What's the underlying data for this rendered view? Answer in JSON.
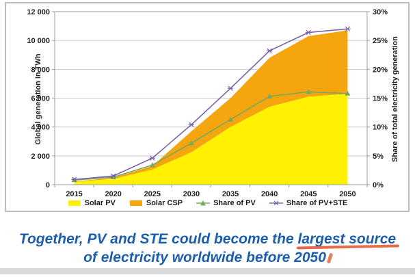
{
  "chart_data": {
    "type": "area",
    "title": "",
    "x": [
      "2015",
      "2020",
      "2025",
      "2030",
      "2035",
      "2040",
      "2045",
      "2050"
    ],
    "left_axis": {
      "label": "Global generation in TWh",
      "range": [
        0,
        12000
      ],
      "ticks": [
        "0",
        "2 000",
        "4 000",
        "6 000",
        "8 000",
        "10 000",
        "12 000"
      ]
    },
    "right_axis": {
      "label": "Share of total electricity generation",
      "range": [
        0,
        30
      ],
      "ticks": [
        "0%",
        "5%",
        "10%",
        "15%",
        "20%",
        "25%",
        "30%"
      ]
    },
    "grid": true,
    "legend_position": "bottom",
    "series": [
      {
        "name": "Solar PV",
        "kind": "area-stacked",
        "axis": "left",
        "unit": "TWh",
        "color": "#fff101",
        "values": [
          200,
          400,
          1050,
          2250,
          4000,
          5400,
          6100,
          6300
        ]
      },
      {
        "name": "Solar CSP",
        "kind": "area-stacked",
        "axis": "left",
        "unit": "TWh",
        "color": "#f5a50d",
        "values": [
          30,
          80,
          250,
          1450,
          2000,
          3400,
          4200,
          4400
        ]
      },
      {
        "name": "Share of PV",
        "kind": "line",
        "axis": "right",
        "unit": "%",
        "color": "#77a95f",
        "marker": "triangle",
        "values": [
          0.8,
          1.3,
          3.4,
          7.2,
          11.3,
          15.3,
          16.1,
          15.8
        ]
      },
      {
        "name": "Share of PV+STE",
        "kind": "line",
        "axis": "right",
        "unit": "%",
        "color": "#7b62a8",
        "marker": "x",
        "values": [
          0.9,
          1.5,
          4.6,
          10.4,
          16.7,
          23.2,
          26.4,
          27.0
        ]
      }
    ]
  },
  "caption": {
    "line1_prefix": "Together, PV and STE could become the ",
    "line1_highlight": "largest source",
    "line2": "of electricity worldwide before 2050",
    "color": "#1b5eae"
  },
  "style_colors": {
    "gridline": "#c9c9c9",
    "plot_border": "#9b9b9b",
    "frame_border": "#bdbdbd",
    "underline_mark": "#e2512a"
  }
}
